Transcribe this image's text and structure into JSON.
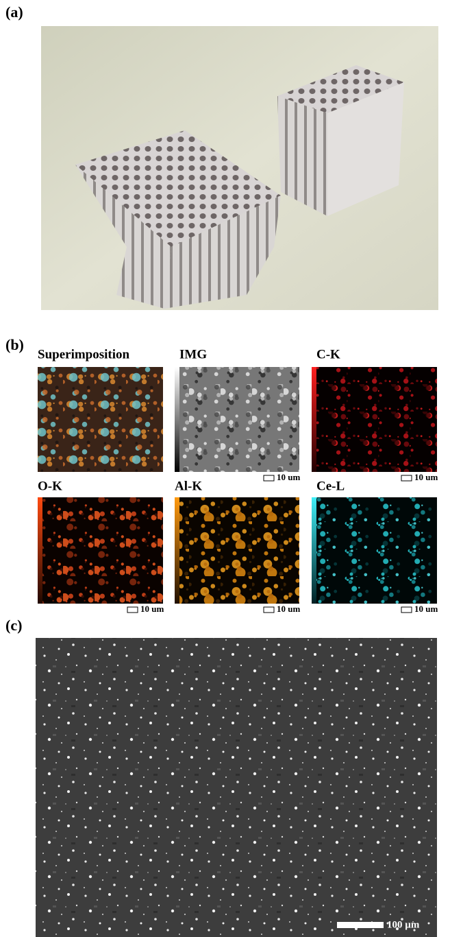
{
  "panels": {
    "a": {
      "label": "(a)"
    },
    "b": {
      "label": "(b)",
      "maps": [
        {
          "title": "Superimposition"
        },
        {
          "title": "IMG",
          "scale": "10 um"
        },
        {
          "title": "C-K",
          "scale": "10 um"
        },
        {
          "title": "O-K",
          "scale": "10 um"
        },
        {
          "title": "Al-K",
          "scale": "10 um"
        },
        {
          "title": "Ce-L",
          "scale": "10 um"
        }
      ]
    },
    "c": {
      "label": "(c)",
      "scale": "100 µm"
    }
  }
}
